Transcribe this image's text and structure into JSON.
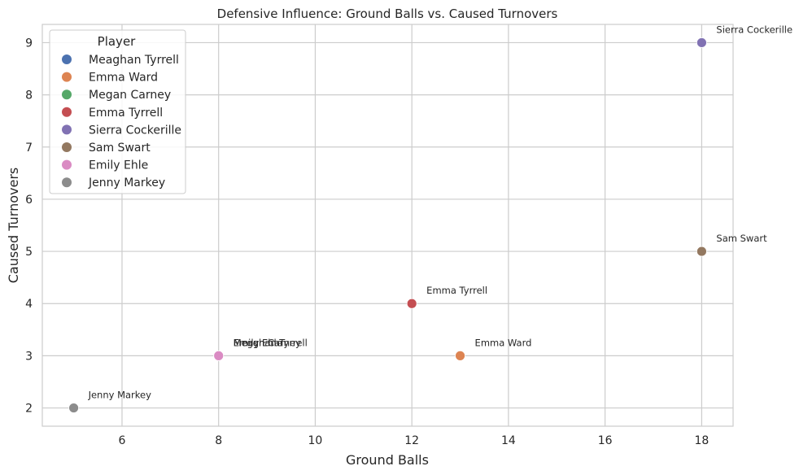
{
  "chart_data": {
    "type": "scatter",
    "title": "Defensive Influence: Ground Balls vs. Caused Turnovers",
    "xlabel": "Ground Balls",
    "ylabel": "Caused Turnovers",
    "xlim": [
      4.35,
      18.65
    ],
    "ylim": [
      1.65,
      9.35
    ],
    "xticks": [
      6,
      8,
      10,
      12,
      14,
      16,
      18
    ],
    "yticks": [
      2,
      3,
      4,
      5,
      6,
      7,
      8,
      9
    ],
    "grid": true,
    "legend": {
      "title": "Player",
      "placement": "top-left"
    },
    "series": [
      {
        "name": "Meaghan Tyrrell",
        "color": "#4c72b0",
        "x": 8,
        "y": 3
      },
      {
        "name": "Emma Ward",
        "color": "#dd8452",
        "x": 13,
        "y": 3
      },
      {
        "name": "Megan Carney",
        "color": "#55a868",
        "x": 8,
        "y": 3
      },
      {
        "name": "Emma Tyrrell",
        "color": "#c44e52",
        "x": 12,
        "y": 4
      },
      {
        "name": "Sierra Cockerille",
        "color": "#8172b3",
        "x": 18,
        "y": 9
      },
      {
        "name": "Sam Swart",
        "color": "#937860",
        "x": 18,
        "y": 5
      },
      {
        "name": "Emily Ehle",
        "color": "#da8bc3",
        "x": 8,
        "y": 3
      },
      {
        "name": "Jenny Markey",
        "color": "#8c8c8c",
        "x": 5,
        "y": 2
      }
    ]
  }
}
